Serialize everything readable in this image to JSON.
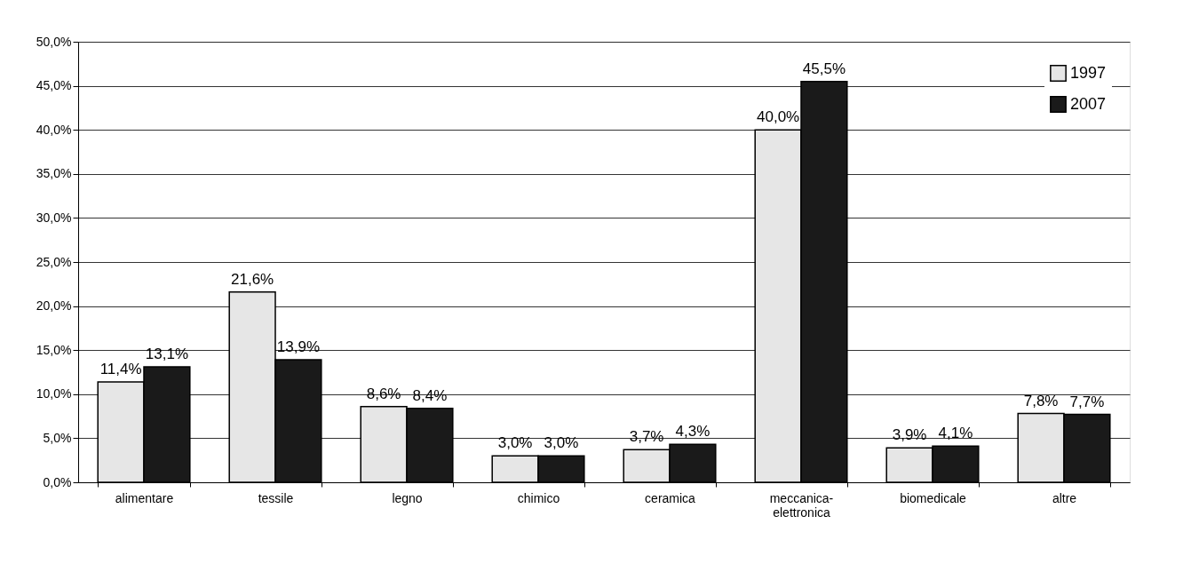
{
  "chart_data": {
    "type": "bar",
    "categories": [
      "alimentare",
      "tessile",
      "legno",
      "chimico",
      "ceramica",
      "meccanica-elettronica",
      "biomedicale",
      "altre"
    ],
    "series": [
      {
        "name": "1997",
        "color": "#e6e6e6",
        "values": [
          11.4,
          21.6,
          8.6,
          3.0,
          3.7,
          40.0,
          3.9,
          7.8
        ],
        "value_labels": [
          "11,4%",
          "21,6%",
          "8,6%",
          "3,0%",
          "3,7%",
          "40,0%",
          "3,9%",
          "7,8%"
        ]
      },
      {
        "name": "2007",
        "color": "#1a1a1a",
        "values": [
          13.1,
          13.9,
          8.4,
          3.0,
          4.3,
          45.5,
          4.1,
          7.7
        ],
        "value_labels": [
          "13,1%",
          "13,9%",
          "8,4%",
          "3,0%",
          "4,3%",
          "45,5%",
          "4,1%",
          "7,7%"
        ]
      }
    ],
    "ylim": [
      0,
      50
    ],
    "yticks": [
      {
        "value": 0,
        "label": "0,0%"
      },
      {
        "value": 5,
        "label": "5,0%"
      },
      {
        "value": 10,
        "label": "10,0%"
      },
      {
        "value": 15,
        "label": "15,0%"
      },
      {
        "value": 20,
        "label": "20,0%"
      },
      {
        "value": 25,
        "label": "25,0%"
      },
      {
        "value": 30,
        "label": "30,0%"
      },
      {
        "value": 35,
        "label": "35,0%"
      },
      {
        "value": 40,
        "label": "40,0%"
      },
      {
        "value": 45,
        "label": "45,0%"
      },
      {
        "value": 50,
        "label": "50,0%"
      }
    ],
    "grid": "y",
    "legend": "top right"
  }
}
